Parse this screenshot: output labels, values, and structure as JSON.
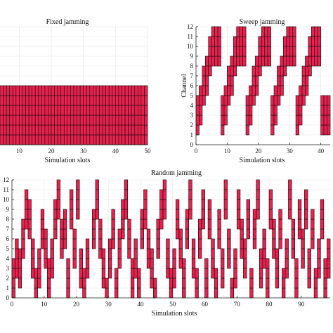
{
  "chart_data": [
    {
      "type": "bar",
      "title": "Fixed jamming",
      "xlabel": "Simulation slots",
      "ylabel": "",
      "xlim": [
        4,
        50
      ],
      "ylim": [
        0,
        12
      ],
      "x_ticks": [
        10,
        20,
        30,
        40,
        50
      ],
      "y_ticks": [],
      "grid": true,
      "bar_color": "#e8224f",
      "cells": [
        {
          "start": 4,
          "end": 50,
          "channels": [
            1,
            2,
            3,
            4,
            5,
            6
          ]
        }
      ]
    },
    {
      "type": "bar",
      "title": "Sweep jamming",
      "xlabel": "Simulation slots",
      "ylabel": "Channel",
      "xlim": [
        0,
        43
      ],
      "ylim": [
        0,
        12
      ],
      "x_ticks": [
        0,
        10,
        20,
        30,
        40
      ],
      "y_ticks": [
        0,
        1,
        2,
        3,
        4,
        5,
        6,
        7,
        8,
        9,
        10,
        11,
        12
      ],
      "grid": true,
      "bar_color": "#e8224f",
      "sweep_cycles": [
        {
          "start": 0,
          "end": 8,
          "top": 12
        },
        {
          "start": 8,
          "end": 16,
          "top": 12
        },
        {
          "start": 16,
          "end": 24,
          "top": 12
        },
        {
          "start": 24,
          "end": 32,
          "top": 12
        },
        {
          "start": 32,
          "end": 40,
          "top": 12
        },
        {
          "start": 40,
          "end": 43,
          "top": 5
        }
      ]
    },
    {
      "type": "bar",
      "title": "Random jamming",
      "xlabel": "Simulation slots",
      "ylabel": "",
      "xlim": [
        0,
        99
      ],
      "ylim": [
        0,
        12
      ],
      "x_ticks": [
        0,
        10,
        20,
        30,
        40,
        50,
        60,
        70,
        80,
        90
      ],
      "y_ticks": [
        0,
        1,
        2,
        3,
        4,
        5,
        6,
        7,
        8,
        9,
        10,
        11,
        12
      ],
      "grid": true,
      "bar_color": "#e8224f",
      "slot_ranges": [
        [
          0,
          4
        ],
        [
          1,
          6
        ],
        [
          2,
          5
        ],
        [
          3,
          8
        ],
        [
          4,
          11
        ],
        [
          5,
          10
        ],
        [
          6,
          6
        ],
        [
          7,
          3
        ],
        [
          8,
          5
        ],
        [
          9,
          9
        ],
        [
          10,
          7
        ],
        [
          11,
          4
        ],
        [
          12,
          6
        ],
        [
          13,
          10
        ],
        [
          14,
          12
        ],
        [
          15,
          8
        ],
        [
          16,
          9
        ],
        [
          17,
          4
        ],
        [
          18,
          11
        ],
        [
          19,
          7
        ],
        [
          20,
          12
        ],
        [
          21,
          5
        ],
        [
          22,
          3
        ],
        [
          23,
          6
        ],
        [
          24,
          0
        ],
        [
          25,
          9
        ],
        [
          26,
          12
        ],
        [
          27,
          8
        ],
        [
          28,
          5
        ],
        [
          29,
          2
        ],
        [
          30,
          6
        ],
        [
          31,
          9
        ],
        [
          32,
          3
        ],
        [
          33,
          7
        ],
        [
          34,
          10
        ],
        [
          35,
          12
        ],
        [
          36,
          8
        ],
        [
          37,
          4
        ],
        [
          38,
          6
        ],
        [
          39,
          3
        ],
        [
          40,
          9
        ],
        [
          41,
          11
        ],
        [
          42,
          7
        ],
        [
          43,
          5
        ],
        [
          44,
          2
        ],
        [
          45,
          8
        ],
        [
          46,
          11
        ],
        [
          47,
          12
        ],
        [
          48,
          6
        ],
        [
          49,
          3
        ],
        [
          50,
          5
        ],
        [
          51,
          10
        ],
        [
          52,
          7
        ],
        [
          53,
          4
        ],
        [
          54,
          9
        ],
        [
          55,
          12
        ],
        [
          56,
          6
        ],
        [
          57,
          3
        ],
        [
          58,
          8
        ],
        [
          59,
          11
        ],
        [
          60,
          4
        ],
        [
          61,
          10
        ],
        [
          62,
          6
        ],
        [
          63,
          3
        ],
        [
          64,
          9
        ],
        [
          65,
          5
        ],
        [
          66,
          12
        ],
        [
          67,
          7
        ],
        [
          68,
          2
        ],
        [
          69,
          5
        ],
        [
          70,
          11
        ],
        [
          71,
          8
        ],
        [
          72,
          6
        ],
        [
          73,
          10
        ],
        [
          74,
          3
        ],
        [
          75,
          9
        ],
        [
          76,
          12
        ],
        [
          77,
          5
        ],
        [
          78,
          7
        ],
        [
          79,
          4
        ],
        [
          80,
          11
        ],
        [
          81,
          8
        ],
        [
          82,
          5
        ],
        [
          83,
          9
        ],
        [
          84,
          3
        ],
        [
          85,
          6
        ],
        [
          86,
          12
        ],
        [
          87,
          8
        ],
        [
          88,
          4
        ],
        [
          89,
          10
        ],
        [
          90,
          7
        ],
        [
          91,
          11
        ],
        [
          92,
          5
        ],
        [
          93,
          9
        ],
        [
          94,
          3
        ],
        [
          95,
          6
        ],
        [
          96,
          10
        ],
        [
          97,
          4
        ],
        [
          98,
          6
        ]
      ]
    }
  ]
}
